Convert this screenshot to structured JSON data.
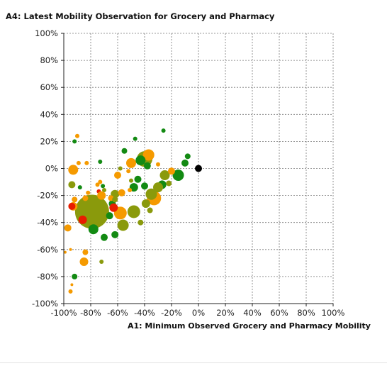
{
  "chart_data": {
    "type": "scatter",
    "title": "A4: Latest Mobility Observation for Grocery and Pharmacy",
    "xlabel": "A1: Minimum Observed Grocery and Pharmacy Mobility",
    "ylabel": "",
    "xlim": [
      -100,
      100
    ],
    "ylim": [
      -100,
      100
    ],
    "x_ticks": [
      "-100%",
      "-80%",
      "-60%",
      "-40%",
      "-20%",
      "0%",
      "20%",
      "40%",
      "60%",
      "80%",
      "100%"
    ],
    "y_ticks": [
      "100%",
      "80%",
      "60%",
      "40%",
      "20%",
      "0%",
      "-20%",
      "-40%",
      "-60%",
      "-80%",
      "-100%"
    ],
    "grid": true,
    "legend": "none",
    "colors": {
      "green": "#138a13",
      "olive": "#8a9a0c",
      "orange": "#f59a00",
      "red": "#e81c00",
      "black": "#000000"
    },
    "points": [
      {
        "x": 0,
        "y": 0,
        "size": 5,
        "color": "black"
      },
      {
        "x": -79,
        "y": -32,
        "size": 24,
        "color": "olive"
      },
      {
        "x": -40,
        "y": 7,
        "size": 11,
        "color": "olive"
      },
      {
        "x": -37,
        "y": 10,
        "size": 8,
        "color": "orange"
      },
      {
        "x": -43,
        "y": 6,
        "size": 7,
        "color": "green"
      },
      {
        "x": -33,
        "y": -22,
        "size": 10,
        "color": "orange"
      },
      {
        "x": -35,
        "y": -19,
        "size": 8,
        "color": "olive"
      },
      {
        "x": -48,
        "y": -32,
        "size": 9,
        "color": "olive"
      },
      {
        "x": -58,
        "y": -33,
        "size": 9,
        "color": "orange"
      },
      {
        "x": -56,
        "y": -42,
        "size": 8,
        "color": "olive"
      },
      {
        "x": -15,
        "y": -5,
        "size": 8,
        "color": "green"
      },
      {
        "x": -25,
        "y": -5,
        "size": 7,
        "color": "olive"
      },
      {
        "x": -27,
        "y": -12,
        "size": 6,
        "color": "green"
      },
      {
        "x": -30,
        "y": -14,
        "size": 7,
        "color": "olive"
      },
      {
        "x": -20,
        "y": -2,
        "size": 5,
        "color": "orange"
      },
      {
        "x": -10,
        "y": 4,
        "size": 5,
        "color": "green"
      },
      {
        "x": -8,
        "y": 9,
        "size": 4,
        "color": "green"
      },
      {
        "x": -26,
        "y": 28,
        "size": 3,
        "color": "green"
      },
      {
        "x": -47,
        "y": 22,
        "size": 3,
        "color": "green"
      },
      {
        "x": -55,
        "y": 13,
        "size": 4,
        "color": "green"
      },
      {
        "x": -50,
        "y": 4,
        "size": 7,
        "color": "orange"
      },
      {
        "x": -38,
        "y": 2,
        "size": 5,
        "color": "green"
      },
      {
        "x": -45,
        "y": -8,
        "size": 5,
        "color": "green"
      },
      {
        "x": -48,
        "y": -14,
        "size": 6,
        "color": "green"
      },
      {
        "x": -40,
        "y": -13,
        "size": 5,
        "color": "green"
      },
      {
        "x": -60,
        "y": -5,
        "size": 5,
        "color": "orange"
      },
      {
        "x": -62,
        "y": -19,
        "size": 6,
        "color": "olive"
      },
      {
        "x": -64,
        "y": -26,
        "size": 5,
        "color": "green"
      },
      {
        "x": -63,
        "y": -29,
        "size": 6,
        "color": "red"
      },
      {
        "x": -66,
        "y": -35,
        "size": 5,
        "color": "green"
      },
      {
        "x": -62,
        "y": -49,
        "size": 5,
        "color": "green"
      },
      {
        "x": -70,
        "y": -51,
        "size": 5,
        "color": "green"
      },
      {
        "x": -78,
        "y": -45,
        "size": 7,
        "color": "green"
      },
      {
        "x": -72,
        "y": -69,
        "size": 3,
        "color": "olive"
      },
      {
        "x": -86,
        "y": -38,
        "size": 6,
        "color": "red"
      },
      {
        "x": -93,
        "y": -28,
        "size": 6,
        "color": "orange"
      },
      {
        "x": -94,
        "y": -28,
        "size": 5,
        "color": "red"
      },
      {
        "x": -92,
        "y": -23,
        "size": 4,
        "color": "orange"
      },
      {
        "x": -94,
        "y": -12,
        "size": 5,
        "color": "olive"
      },
      {
        "x": -93,
        "y": -1,
        "size": 7,
        "color": "orange"
      },
      {
        "x": -89,
        "y": 4,
        "size": 3,
        "color": "orange"
      },
      {
        "x": -90,
        "y": 24,
        "size": 3,
        "color": "orange"
      },
      {
        "x": -92,
        "y": 20,
        "size": 3,
        "color": "green"
      },
      {
        "x": -97,
        "y": -44,
        "size": 5,
        "color": "orange"
      },
      {
        "x": -99,
        "y": -62,
        "size": 2,
        "color": "orange"
      },
      {
        "x": -95,
        "y": -60,
        "size": 2,
        "color": "orange"
      },
      {
        "x": -84,
        "y": -62,
        "size": 4,
        "color": "orange"
      },
      {
        "x": -85,
        "y": -69,
        "size": 6,
        "color": "orange"
      },
      {
        "x": -92,
        "y": -80,
        "size": 4,
        "color": "green"
      },
      {
        "x": -94,
        "y": -86,
        "size": 2,
        "color": "orange"
      },
      {
        "x": -95,
        "y": -91,
        "size": 3,
        "color": "orange"
      },
      {
        "x": -75,
        "y": -12,
        "size": 3,
        "color": "orange"
      },
      {
        "x": -73,
        "y": -10,
        "size": 3,
        "color": "orange"
      },
      {
        "x": -82,
        "y": -18,
        "size": 3,
        "color": "orange"
      },
      {
        "x": -84,
        "y": -22,
        "size": 4,
        "color": "orange"
      },
      {
        "x": -74,
        "y": -17,
        "size": 3,
        "color": "red"
      },
      {
        "x": -70,
        "y": -16,
        "size": 3,
        "color": "olive"
      },
      {
        "x": -72,
        "y": -20,
        "size": 6,
        "color": "orange"
      },
      {
        "x": -65,
        "y": -22,
        "size": 4,
        "color": "orange"
      },
      {
        "x": -88,
        "y": -14,
        "size": 3,
        "color": "green"
      },
      {
        "x": -71,
        "y": -13,
        "size": 3,
        "color": "green"
      },
      {
        "x": -73,
        "y": 5,
        "size": 3,
        "color": "green"
      },
      {
        "x": -83,
        "y": 4,
        "size": 3,
        "color": "orange"
      },
      {
        "x": -58,
        "y": 0,
        "size": 3,
        "color": "olive"
      },
      {
        "x": -52,
        "y": -2,
        "size": 3,
        "color": "orange"
      },
      {
        "x": -57,
        "y": -18,
        "size": 5,
        "color": "orange"
      },
      {
        "x": -62,
        "y": -23,
        "size": 4,
        "color": "olive"
      },
      {
        "x": -36,
        "y": -31,
        "size": 4,
        "color": "olive"
      },
      {
        "x": -43,
        "y": -40,
        "size": 4,
        "color": "olive"
      },
      {
        "x": -39,
        "y": -26,
        "size": 6,
        "color": "olive"
      },
      {
        "x": -22,
        "y": -11,
        "size": 4,
        "color": "olive"
      },
      {
        "x": -30,
        "y": 3,
        "size": 3,
        "color": "orange"
      },
      {
        "x": -50,
        "y": -9,
        "size": 3,
        "color": "olive"
      },
      {
        "x": -51,
        "y": -16,
        "size": 3,
        "color": "orange"
      }
    ]
  }
}
